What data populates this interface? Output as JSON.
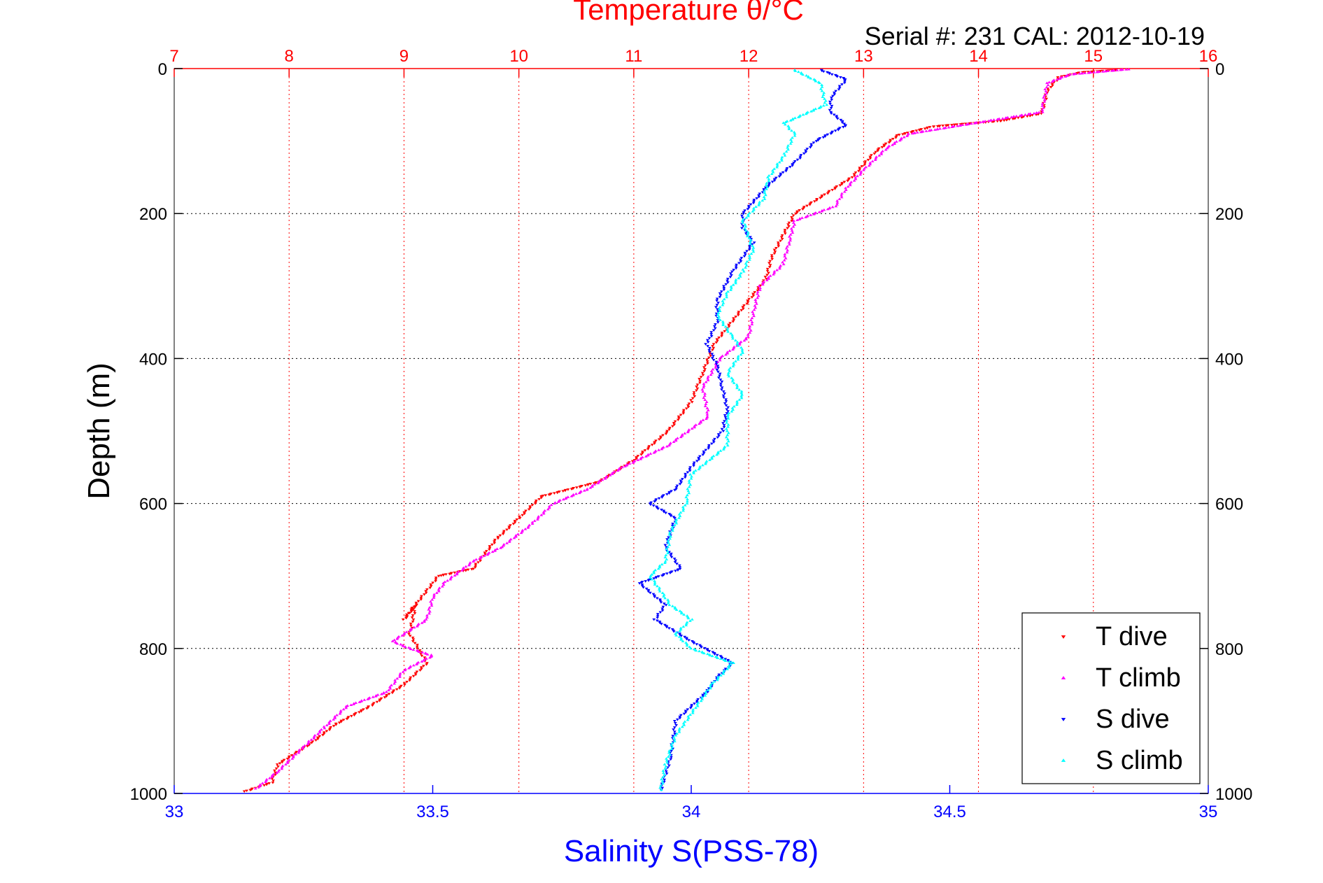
{
  "chart_data": {
    "type": "scatter",
    "title": "Temperature θ/°C",
    "subtitle": "Serial #: 231  CAL: 2012-10-19",
    "ylabel": "Depth (m)",
    "xlabel": "Salinity S(PSS-78)",
    "grid": true,
    "legend_position": "bottom-right",
    "colors": {
      "temperature_axis": "#ff0000",
      "salinity_axis": "#0000ff",
      "t_dive": "#ff0000",
      "t_climb": "#ff00ff",
      "s_dive": "#0000ff",
      "s_climb": "#00ffff"
    },
    "depth_axis": {
      "range": [
        0,
        1000
      ],
      "reversed": true,
      "ticks": [
        0,
        200,
        400,
        600,
        800,
        1000
      ],
      "tick_labels": [
        "0",
        "200",
        "400",
        "600",
        "800",
        "1000"
      ]
    },
    "temperature_axis": {
      "range": [
        7,
        16
      ],
      "ticks": [
        7,
        8,
        9,
        10,
        11,
        12,
        13,
        14,
        15,
        16
      ],
      "tick_labels": [
        "7",
        "8",
        "9",
        "10",
        "11",
        "12",
        "13",
        "14",
        "15",
        "16"
      ]
    },
    "salinity_axis": {
      "range": [
        33,
        35
      ],
      "ticks": [
        33,
        33.5,
        34,
        34.5,
        35
      ],
      "tick_labels": [
        "33",
        "33.5",
        "34",
        "34.5",
        "35"
      ]
    },
    "series": [
      {
        "name": "T dive",
        "axis": "temperature",
        "marker": "triangle-down",
        "points": [
          [
            15.2,
            2
          ],
          [
            14.9,
            5
          ],
          [
            14.7,
            12
          ],
          [
            14.6,
            30
          ],
          [
            14.55,
            62
          ],
          [
            14.2,
            72
          ],
          [
            13.6,
            80
          ],
          [
            13.3,
            92
          ],
          [
            13.1,
            115
          ],
          [
            12.9,
            150
          ],
          [
            12.6,
            180
          ],
          [
            12.4,
            200
          ],
          [
            12.3,
            230
          ],
          [
            12.2,
            260
          ],
          [
            12.15,
            290
          ],
          [
            12.0,
            320
          ],
          [
            11.8,
            360
          ],
          [
            11.7,
            380
          ],
          [
            11.6,
            420
          ],
          [
            11.5,
            460
          ],
          [
            11.3,
            500
          ],
          [
            11.0,
            540
          ],
          [
            10.7,
            570
          ],
          [
            10.2,
            590
          ],
          [
            10.0,
            620
          ],
          [
            9.8,
            650
          ],
          [
            9.6,
            690
          ],
          [
            9.3,
            700
          ],
          [
            9.0,
            760
          ],
          [
            9.1,
            740
          ],
          [
            9.05,
            780
          ],
          [
            9.2,
            820
          ],
          [
            9.0,
            850
          ],
          [
            8.7,
            880
          ],
          [
            8.4,
            905
          ],
          [
            8.2,
            930
          ],
          [
            7.9,
            960
          ],
          [
            7.85,
            985
          ],
          [
            7.6,
            998
          ]
        ]
      },
      {
        "name": "T climb",
        "axis": "temperature",
        "marker": "triangle-up",
        "points": [
          [
            15.3,
            1
          ],
          [
            14.8,
            8
          ],
          [
            14.6,
            20
          ],
          [
            14.55,
            60
          ],
          [
            13.4,
            90
          ],
          [
            13.2,
            110
          ],
          [
            13.0,
            140
          ],
          [
            12.85,
            165
          ],
          [
            12.75,
            190
          ],
          [
            12.4,
            210
          ],
          [
            12.35,
            240
          ],
          [
            12.3,
            270
          ],
          [
            12.1,
            300
          ],
          [
            12.05,
            330
          ],
          [
            12.0,
            370
          ],
          [
            11.75,
            400
          ],
          [
            11.6,
            440
          ],
          [
            11.65,
            480
          ],
          [
            11.3,
            520
          ],
          [
            10.9,
            550
          ],
          [
            10.6,
            580
          ],
          [
            10.3,
            600
          ],
          [
            10.1,
            630
          ],
          [
            9.85,
            660
          ],
          [
            9.6,
            680
          ],
          [
            9.35,
            710
          ],
          [
            9.25,
            730
          ],
          [
            9.2,
            760
          ],
          [
            8.9,
            790
          ],
          [
            9.05,
            800
          ],
          [
            9.25,
            810
          ],
          [
            9.0,
            830
          ],
          [
            8.85,
            860
          ],
          [
            8.5,
            880
          ],
          [
            8.3,
            910
          ],
          [
            8.1,
            940
          ],
          [
            7.9,
            970
          ],
          [
            7.7,
            995
          ]
        ]
      },
      {
        "name": "S dive",
        "axis": "salinity",
        "marker": "triangle-down",
        "points": [
          [
            34.25,
            2
          ],
          [
            34.3,
            15
          ],
          [
            34.27,
            40
          ],
          [
            34.27,
            60
          ],
          [
            34.3,
            78
          ],
          [
            34.24,
            100
          ],
          [
            34.2,
            130
          ],
          [
            34.15,
            160
          ],
          [
            34.1,
            200
          ],
          [
            34.1,
            220
          ],
          [
            34.12,
            240
          ],
          [
            34.08,
            280
          ],
          [
            34.05,
            320
          ],
          [
            34.05,
            350
          ],
          [
            34.03,
            380
          ],
          [
            34.05,
            410
          ],
          [
            34.06,
            440
          ],
          [
            34.07,
            470
          ],
          [
            34.06,
            500
          ],
          [
            34.0,
            550
          ],
          [
            33.97,
            580
          ],
          [
            33.92,
            600
          ],
          [
            33.97,
            620
          ],
          [
            33.95,
            660
          ],
          [
            33.98,
            690
          ],
          [
            33.9,
            710
          ],
          [
            33.95,
            740
          ],
          [
            33.93,
            760
          ],
          [
            34.0,
            790
          ],
          [
            34.08,
            820
          ],
          [
            34.05,
            840
          ],
          [
            34.03,
            860
          ],
          [
            33.97,
            900
          ],
          [
            33.96,
            950
          ],
          [
            33.94,
            998
          ]
        ]
      },
      {
        "name": "S climb",
        "axis": "salinity",
        "marker": "triangle-up",
        "points": [
          [
            34.2,
            2
          ],
          [
            34.25,
            20
          ],
          [
            34.26,
            50
          ],
          [
            34.18,
            75
          ],
          [
            34.2,
            90
          ],
          [
            34.18,
            120
          ],
          [
            34.15,
            150
          ],
          [
            34.14,
            180
          ],
          [
            34.1,
            210
          ],
          [
            34.12,
            250
          ],
          [
            34.1,
            280
          ],
          [
            34.07,
            310
          ],
          [
            34.05,
            340
          ],
          [
            34.08,
            370
          ],
          [
            34.1,
            390
          ],
          [
            34.07,
            420
          ],
          [
            34.1,
            450
          ],
          [
            34.07,
            480
          ],
          [
            34.07,
            520
          ],
          [
            34.0,
            560
          ],
          [
            33.99,
            600
          ],
          [
            33.96,
            640
          ],
          [
            33.95,
            680
          ],
          [
            33.92,
            700
          ],
          [
            33.96,
            740
          ],
          [
            34.0,
            760
          ],
          [
            33.97,
            780
          ],
          [
            34.0,
            800
          ],
          [
            34.08,
            820
          ],
          [
            34.04,
            850
          ],
          [
            34.02,
            870
          ],
          [
            33.97,
            920
          ],
          [
            33.95,
            960
          ],
          [
            33.94,
            998
          ]
        ]
      }
    ]
  }
}
